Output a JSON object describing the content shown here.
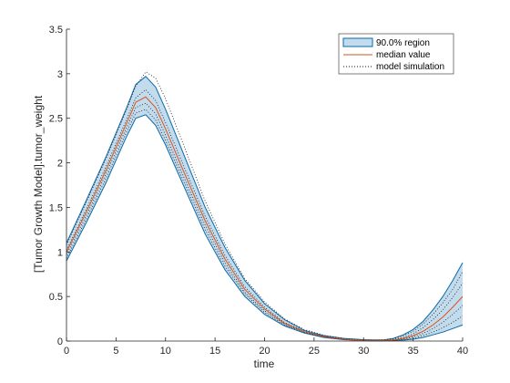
{
  "chart_data": {
    "type": "line",
    "title": "",
    "xlabel": "time",
    "ylabel": "[Tumor Growth Model].tumor_weight",
    "xlim": [
      0,
      40
    ],
    "ylim": [
      0,
      3.5
    ],
    "xticks": [
      "0",
      "5",
      "10",
      "15",
      "20",
      "25",
      "30",
      "35",
      "40"
    ],
    "yticks": [
      "0",
      "0.5",
      "1",
      "1.5",
      "2",
      "2.5",
      "3",
      "3.5"
    ],
    "grid": false,
    "legend_position": "top-right",
    "legend": [
      {
        "label": "90.0% region",
        "kind": "patch"
      },
      {
        "label": "median value",
        "kind": "line"
      },
      {
        "label": "model simulation",
        "kind": "dotted"
      }
    ],
    "x": [
      0,
      2,
      4,
      6,
      7,
      8,
      9,
      10,
      12,
      14,
      16,
      18,
      20,
      22,
      24,
      26,
      28,
      30,
      31,
      32,
      33,
      34,
      35,
      36,
      37,
      38,
      39,
      40
    ],
    "series": [
      {
        "name": "90.0% region upper",
        "values": [
          1.1,
          1.58,
          2.07,
          2.6,
          2.88,
          2.97,
          2.85,
          2.6,
          2.05,
          1.5,
          1.05,
          0.68,
          0.42,
          0.24,
          0.12,
          0.06,
          0.03,
          0.015,
          0.012,
          0.013,
          0.03,
          0.07,
          0.13,
          0.22,
          0.35,
          0.5,
          0.68,
          0.88
        ]
      },
      {
        "name": "90.0% region lower",
        "values": [
          0.9,
          1.33,
          1.78,
          2.28,
          2.5,
          2.54,
          2.42,
          2.2,
          1.7,
          1.2,
          0.8,
          0.5,
          0.3,
          0.17,
          0.09,
          0.04,
          0.015,
          0.005,
          0.003,
          0.003,
          0.005,
          0.01,
          0.02,
          0.04,
          0.07,
          0.1,
          0.14,
          0.18
        ]
      },
      {
        "name": "median value",
        "values": [
          1.0,
          1.45,
          1.92,
          2.43,
          2.68,
          2.74,
          2.62,
          2.38,
          1.86,
          1.35,
          0.92,
          0.58,
          0.36,
          0.2,
          0.105,
          0.05,
          0.02,
          0.008,
          0.006,
          0.006,
          0.012,
          0.03,
          0.06,
          0.11,
          0.18,
          0.27,
          0.38,
          0.5
        ]
      },
      {
        "name": "model simulation",
        "values": [
          1.08,
          1.56,
          2.05,
          2.58,
          2.86,
          3.02,
          2.95,
          2.72,
          2.15,
          1.57,
          1.09,
          0.7,
          0.44,
          0.25,
          0.13,
          0.065,
          0.03,
          0.013,
          0.01,
          0.012,
          0.025,
          0.06,
          0.11,
          0.19,
          0.3,
          0.43,
          0.58,
          0.78
        ]
      },
      {
        "name": "model simulation",
        "values": [
          0.93,
          1.37,
          1.83,
          2.33,
          2.56,
          2.6,
          2.48,
          2.25,
          1.75,
          1.25,
          0.84,
          0.53,
          0.32,
          0.18,
          0.095,
          0.045,
          0.017,
          0.006,
          0.004,
          0.004,
          0.007,
          0.015,
          0.03,
          0.06,
          0.1,
          0.15,
          0.21,
          0.28
        ]
      },
      {
        "name": "model simulation",
        "values": [
          1.02,
          1.48,
          1.96,
          2.47,
          2.73,
          2.82,
          2.7,
          2.45,
          1.92,
          1.4,
          0.96,
          0.61,
          0.38,
          0.21,
          0.11,
          0.053,
          0.022,
          0.009,
          0.007,
          0.008,
          0.016,
          0.04,
          0.08,
          0.15,
          0.24,
          0.35,
          0.49,
          0.65
        ]
      },
      {
        "name": "model simulation",
        "values": [
          0.97,
          1.41,
          1.88,
          2.38,
          2.62,
          2.67,
          2.55,
          2.31,
          1.8,
          1.3,
          0.88,
          0.55,
          0.34,
          0.19,
          0.1,
          0.047,
          0.018,
          0.007,
          0.005,
          0.005,
          0.009,
          0.022,
          0.045,
          0.085,
          0.14,
          0.21,
          0.3,
          0.4
        ]
      }
    ],
    "colors": {
      "band_fill": "#c2dcee",
      "band_edge": "#0a6aa8",
      "median": "#d9541a",
      "simulation": "#1a1a1a",
      "axis": "#262626"
    }
  }
}
